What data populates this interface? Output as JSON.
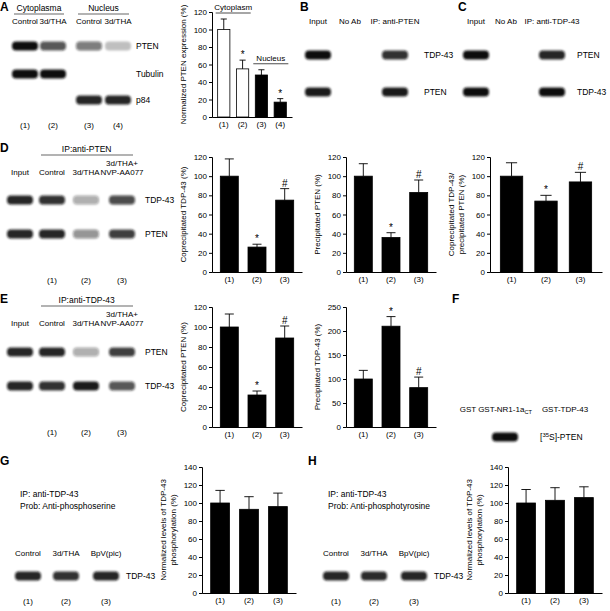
{
  "chart_data": [
    {
      "type": "bar",
      "y_label": [
        "Normalized PTEN expression (%)"
      ],
      "categories": [
        "(1)",
        "(2)",
        "(3)",
        "(4)"
      ],
      "values": [
        100,
        55,
        48,
        17
      ],
      "errors": [
        12,
        10,
        6,
        4
      ],
      "significance": [
        null,
        "*",
        null,
        "*"
      ],
      "colors": [
        "#ffffff",
        "#ffffff",
        "#000000",
        "#000000"
      ],
      "groups": [
        {
          "label": "Cytoplasm",
          "span": 2
        },
        {
          "label": "Nucleus",
          "span": 2
        }
      ],
      "ylim": [
        0,
        120
      ],
      "yticks": [
        0,
        20,
        40,
        60,
        80,
        100,
        120
      ]
    },
    {
      "type": "bar",
      "y_label": [
        "Coprecipitated TDP-43 (%)"
      ],
      "categories": [
        "(1)",
        "(2)",
        "(3)"
      ],
      "values": [
        100,
        26,
        75
      ],
      "errors": [
        18,
        3,
        12
      ],
      "significance": [
        null,
        "*",
        "#"
      ],
      "color": "#000000",
      "ylim": [
        0,
        120
      ],
      "yticks": [
        0,
        20,
        40,
        60,
        80,
        100,
        120
      ]
    },
    {
      "type": "bar",
      "y_label": [
        "Precipitated PTEN (%)"
      ],
      "categories": [
        "(1)",
        "(2)",
        "(3)"
      ],
      "values": [
        100,
        36,
        83
      ],
      "errors": [
        13,
        5,
        13
      ],
      "significance": [
        null,
        "*",
        "#"
      ],
      "color": "#000000",
      "ylim": [
        0,
        120
      ],
      "yticks": [
        0,
        20,
        40,
        60,
        80,
        100,
        120
      ]
    },
    {
      "type": "bar",
      "y_label": [
        "Coprecipitated TDP-43/",
        "precipitated PTEN (%)"
      ],
      "categories": [
        "(1)",
        "(2)",
        "(3)"
      ],
      "values": [
        100,
        74,
        94
      ],
      "errors": [
        14,
        6,
        10
      ],
      "significance": [
        null,
        "*",
        "#"
      ],
      "color": "#000000",
      "ylim": [
        0,
        120
      ],
      "yticks": [
        0,
        20,
        40,
        60,
        80,
        100,
        120
      ]
    },
    {
      "type": "bar",
      "y_label": [
        "Coprecipitated PTEN (%)"
      ],
      "categories": [
        "(1)",
        "(2)",
        "(3)"
      ],
      "values": [
        100,
        32,
        89
      ],
      "errors": [
        13,
        4,
        12
      ],
      "significance": [
        null,
        "*",
        "#"
      ],
      "color": "#000000",
      "ylim": [
        0,
        120
      ],
      "yticks": [
        0,
        20,
        40,
        60,
        80,
        100,
        120
      ]
    },
    {
      "type": "bar",
      "y_label": [
        "Precipitated TDP-43 (%)"
      ],
      "categories": [
        "(1)",
        "(2)",
        "(3)"
      ],
      "values": [
        100,
        210,
        82
      ],
      "errors": [
        18,
        20,
        22
      ],
      "significance": [
        null,
        "*",
        "#"
      ],
      "color": "#000000",
      "ylim": [
        0,
        250
      ],
      "yticks": [
        0,
        50,
        100,
        150,
        200,
        250
      ]
    },
    {
      "type": "bar",
      "y_label": [
        "Normalized levels of TDP-43",
        "phosphorylation (%)"
      ],
      "categories": [
        "(1)",
        "(2)",
        "(3)"
      ],
      "values": [
        100,
        93,
        96
      ],
      "errors": [
        14,
        14,
        15
      ],
      "color": "#000000",
      "ylim": [
        0,
        140
      ],
      "yticks": [
        0,
        20,
        40,
        60,
        80,
        100,
        120,
        140
      ]
    },
    {
      "type": "bar",
      "y_label": [
        "Normalized levels of TDP-43",
        "phosphorylation (%)"
      ],
      "categories": [
        "(1)",
        "(2)",
        "(3)"
      ],
      "values": [
        100,
        103,
        106
      ],
      "errors": [
        15,
        14,
        12
      ],
      "color": "#000000",
      "ylim": [
        0,
        140
      ],
      "yticks": [
        0,
        20,
        40,
        60,
        80,
        100,
        120,
        140
      ]
    }
  ],
  "blots": [
    {
      "panel": "A",
      "headers": [
        {
          "text": "Cytoplasma",
          "span": 2
        },
        {
          "text": "Nucleus",
          "span": 2
        }
      ],
      "lanes": [
        "Control",
        "3d/THA",
        "Control",
        "3d/THA"
      ],
      "rows": [
        {
          "label": "PTEN",
          "bands": [
            1,
            0.7,
            0.55,
            0.25
          ]
        },
        {
          "label": "Tubulin",
          "bands": [
            1,
            1,
            null,
            null
          ]
        },
        {
          "label": "p84",
          "bands": [
            null,
            null,
            0.9,
            0.9
          ]
        }
      ],
      "lane_numbers": [
        "(1)",
        "(2)",
        "(3)",
        "(4)"
      ]
    },
    {
      "panel": "B",
      "lanes": [
        "Input",
        "No Ab",
        "IP: anti-PTEN"
      ],
      "rows": [
        {
          "label": "TDP-43",
          "bands": [
            1,
            null,
            0.85
          ]
        },
        {
          "label": "PTEN",
          "bands": [
            0.95,
            null,
            0.95
          ]
        }
      ]
    },
    {
      "panel": "C",
      "lanes": [
        "Input",
        "No Ab",
        "IP: anti-TDP-43"
      ],
      "rows": [
        {
          "label": "PTEN",
          "bands": [
            1,
            null,
            0.9
          ]
        },
        {
          "label": "TDP-43",
          "bands": [
            1,
            null,
            1
          ]
        }
      ]
    },
    {
      "panel": "D",
      "headers": [
        null,
        {
          "text": "IP:anti-PTEN",
          "span": 3
        }
      ],
      "lanes": [
        "Input",
        "Control",
        "3d/THA",
        [
          "3d/THA+",
          "NVP-AA077"
        ]
      ],
      "rows": [
        {
          "label": "TDP-43",
          "bands": [
            0.9,
            0.85,
            0.35,
            0.75
          ]
        },
        {
          "label": "PTEN",
          "bands": [
            0.9,
            0.9,
            0.45,
            0.8
          ]
        }
      ],
      "lane_numbers": [
        null,
        "(1)",
        "(2)",
        "(3)"
      ]
    },
    {
      "panel": "E",
      "headers": [
        null,
        {
          "text": "IP:anti-TDP-43",
          "span": 3
        }
      ],
      "lanes": [
        "Input",
        "Control",
        "3d/THA",
        [
          "3d/THA+",
          "NVP-AA077"
        ]
      ],
      "rows": [
        {
          "label": "PTEN",
          "bands": [
            0.9,
            0.9,
            0.35,
            0.8
          ]
        },
        {
          "label": "TDP-43",
          "bands": [
            0.9,
            0.85,
            0.95,
            0.7
          ]
        }
      ],
      "lane_numbers": [
        null,
        "(1)",
        "(2)",
        "(3)"
      ]
    },
    {
      "panel": "F",
      "lanes": [
        "GST",
        {
          "text": "GST-NR1-1a",
          "sub": "CT"
        },
        "GST-TDP-43"
      ],
      "rows": [
        {
          "label": {
            "pre": "[",
            "sup": "35",
            "post": "S]-PTEN"
          },
          "bands": [
            null,
            1,
            null
          ]
        }
      ]
    },
    {
      "panel": "G",
      "title": [
        "IP: anti-TDP-43",
        "Prob: Anti-phosphoserine"
      ],
      "lanes": [
        "Control",
        "3d/THA",
        "BpV(pic)"
      ],
      "rows": [
        {
          "label": "TDP-43",
          "bands": [
            0.9,
            0.85,
            0.9
          ]
        }
      ],
      "lane_numbers": [
        "(1)",
        "(2)",
        "(3)"
      ]
    },
    {
      "panel": "H",
      "title": [
        "IP: anti-TDP-43",
        "Prob: Anti-phosphotyrosine"
      ],
      "lanes": [
        "Control",
        "3d/THA",
        "BpV(pic)"
      ],
      "rows": [
        {
          "label": "TDP-43",
          "bands": [
            0.9,
            0.88,
            0.9
          ]
        }
      ],
      "lane_numbers": [
        "(1)",
        "(2)",
        "(3)"
      ]
    }
  ]
}
